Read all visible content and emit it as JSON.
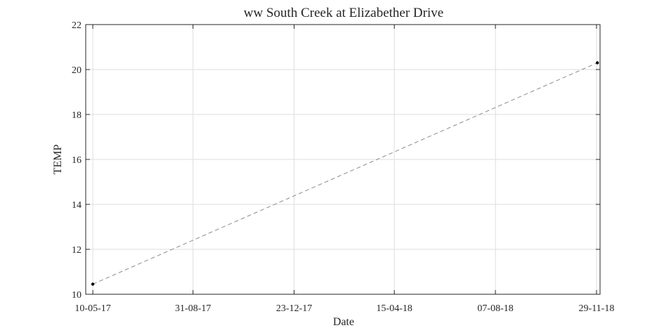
{
  "chart_data": {
    "type": "line",
    "title": "ww South Creek at Elizabether Drive",
    "xlabel": "Date",
    "ylabel": "TEMP",
    "x_ticks": [
      "10-05-17",
      "31-08-17",
      "23-12-17",
      "15-04-18",
      "07-08-18",
      "29-11-18"
    ],
    "x_tick_dates": [
      "2017-05-10",
      "2017-08-31",
      "2017-12-23",
      "2018-04-15",
      "2018-08-07",
      "2018-11-29"
    ],
    "xlim": [
      "2017-05-02",
      "2018-12-03"
    ],
    "ylim": [
      10,
      22
    ],
    "y_ticks": [
      10,
      12,
      14,
      16,
      18,
      20,
      22
    ],
    "grid": true,
    "series": [
      {
        "points": [
          {
            "x": "2017-05-10",
            "y": 10.45
          },
          {
            "x": "2018-11-30",
            "y": 20.3
          }
        ],
        "line_style": "dashed",
        "line_color": "#8c8c8c",
        "marker_color": "#000000"
      }
    ]
  }
}
